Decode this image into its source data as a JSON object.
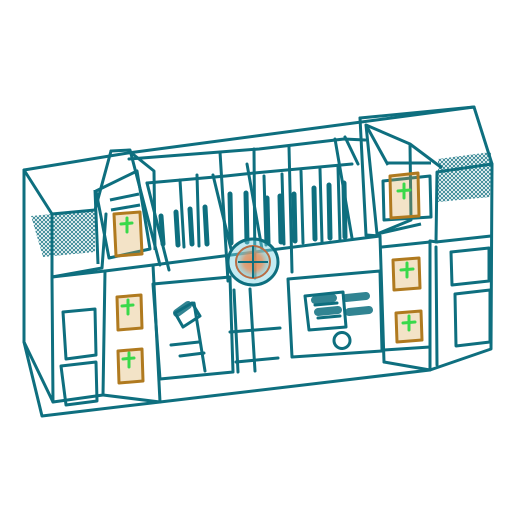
{
  "viewer": {
    "background": "#ffffff",
    "wire_color": "#0e6f7f",
    "wire_color_dark": "#0b5d6b",
    "panel_fill": "#d8a247",
    "panel_stroke": "#b07a1f",
    "marker_color": "#39d94a",
    "center_core_color": "#e48b56",
    "center_glow_color": "#79d2e2"
  }
}
